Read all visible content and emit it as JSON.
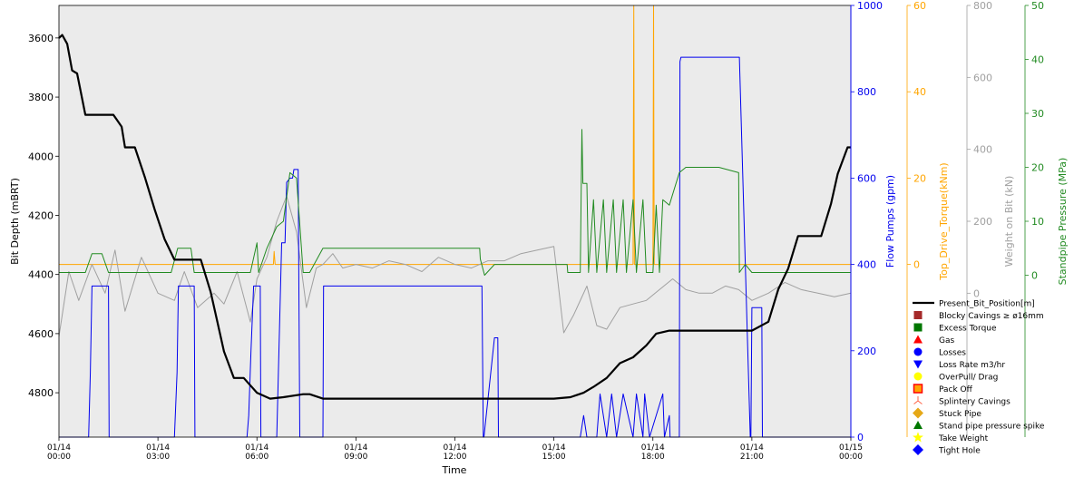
{
  "chart_data": {
    "type": "line",
    "xlabel": "Time",
    "x_ticks": [
      "01/14\n00:00",
      "01/14\n03:00",
      "01/14\n06:00",
      "01/14\n09:00",
      "01/14\n12:00",
      "01/14\n15:00",
      "01/14\n18:00",
      "01/14\n21:00",
      "01/15\n00:00"
    ],
    "axes": {
      "depth": {
        "label": "Bit Depth (mBRT)",
        "color": "#000000",
        "range": [
          3490,
          4950
        ],
        "inverted": true,
        "ticks": [
          3600,
          3800,
          4000,
          4200,
          4400,
          4600,
          4800
        ]
      },
      "flow": {
        "label": "Flow Pumps (gpm)",
        "color": "#0000ee",
        "range": [
          0,
          1000
        ],
        "ticks": [
          0,
          200,
          400,
          600,
          800,
          1000
        ]
      },
      "torque": {
        "label": "Top_Drive_Torque(kNm)",
        "color": "#ffa500",
        "range": [
          -40,
          60
        ],
        "ticks": [
          0,
          20,
          40,
          60
        ]
      },
      "wob": {
        "label": "Weight on Bit (kN)",
        "color": "#a0a0a0",
        "range": [
          -400,
          800
        ],
        "ticks": [
          0,
          200,
          400,
          600,
          800
        ]
      },
      "spp": {
        "label": "Standpipe Pressure (MPa)",
        "color": "#228b22",
        "range": [
          -30,
          50
        ],
        "ticks": [
          0,
          10,
          20,
          30,
          40,
          50
        ]
      }
    },
    "series": [
      {
        "name": "Present_Bit_Position[m]",
        "axis": "depth",
        "color": "#000000",
        "x": [
          0,
          0.1,
          0.25,
          0.4,
          0.55,
          0.8,
          1.3,
          1.6,
          1.65,
          1.9,
          2.0,
          2.3,
          2.6,
          2.9,
          3.2,
          3.5,
          3.8,
          4.0,
          4.3,
          4.6,
          4.8,
          5.0,
          5.3,
          5.6,
          6.0,
          6.4,
          6.8,
          7.4,
          7.6,
          8.0,
          9.0,
          10.0,
          11.0,
          12.0,
          13.0,
          14.0,
          15.0,
          15.5,
          15.9,
          16.2,
          16.6,
          17.0,
          17.4,
          17.8,
          18.1,
          18.5,
          18.8,
          19.2,
          20.0,
          20.6,
          21.0,
          21.5,
          21.8,
          22.1,
          22.4,
          22.8,
          23.1,
          23.4,
          23.6,
          23.9,
          24.0
        ],
        "y": [
          3600,
          3590,
          3620,
          3710,
          3720,
          3860,
          3860,
          3860,
          3860,
          3900,
          3970,
          3970,
          4070,
          4180,
          4280,
          4350,
          4350,
          4350,
          4350,
          4460,
          4560,
          4660,
          4750,
          4750,
          4800,
          4820,
          4815,
          4805,
          4805,
          4820,
          4820,
          4820,
          4820,
          4820,
          4820,
          4820,
          4820,
          4815,
          4800,
          4780,
          4750,
          4700,
          4680,
          4640,
          4600,
          4590,
          4590,
          4590,
          4590,
          4590,
          4590,
          4560,
          4450,
          4380,
          4270,
          4270,
          4270,
          4160,
          4060,
          3970,
          3970
        ]
      },
      {
        "name": "Flow Pumps",
        "axis": "flow",
        "color": "#0000ee",
        "x": [
          0,
          0.9,
          0.95,
          1.0,
          1.08,
          1.15,
          1.5,
          1.52,
          3.5,
          3.58,
          3.62,
          3.7,
          4.1,
          4.12,
          5.7,
          5.75,
          5.82,
          5.9,
          6.1,
          6.12,
          6.6,
          6.65,
          6.75,
          6.85,
          6.9,
          7.0,
          7.08,
          7.12,
          7.25,
          7.3,
          7.5,
          7.52,
          8.0,
          8.02,
          12.8,
          12.82,
          12.86,
          12.88,
          13.2,
          13.22,
          13.3,
          13.32,
          15.8,
          15.9,
          16.0,
          16.3,
          16.4,
          16.6,
          16.75,
          16.9,
          17.1,
          17.4,
          17.5,
          17.7,
          17.75,
          17.9,
          18.3,
          18.35,
          18.5,
          18.52,
          18.8,
          18.82,
          18.85,
          19.6,
          20.6,
          20.62,
          20.95,
          20.97,
          21.0,
          21.3,
          21.32,
          24.0
        ],
        "y": [
          0,
          0,
          150,
          350,
          350,
          350,
          350,
          0,
          0,
          150,
          350,
          350,
          350,
          0,
          0,
          50,
          200,
          350,
          350,
          0,
          0,
          150,
          450,
          450,
          590,
          600,
          600,
          620,
          620,
          0,
          0,
          0,
          0,
          350,
          350,
          350,
          0,
          0,
          230,
          230,
          230,
          0,
          0,
          50,
          0,
          0,
          100,
          0,
          100,
          0,
          100,
          0,
          100,
          0,
          100,
          0,
          100,
          0,
          50,
          0,
          0,
          870,
          880,
          880,
          880,
          880,
          0,
          0,
          300,
          300,
          0,
          0
        ]
      },
      {
        "name": "Standpipe Pressure",
        "axis": "spp",
        "color": "#228b22",
        "x": [
          0,
          0.8,
          1.0,
          1.3,
          1.5,
          1.52,
          3.4,
          3.6,
          4.0,
          4.1,
          4.12,
          5.8,
          6.0,
          6.05,
          6.3,
          6.6,
          6.8,
          7.0,
          7.2,
          7.4,
          7.6,
          8.0,
          10.0,
          12.0,
          12.75,
          12.77,
          12.9,
          13.2,
          13.3,
          15.0,
          15.4,
          15.42,
          15.8,
          15.85,
          15.88,
          16.0,
          16.05,
          16.2,
          16.3,
          16.5,
          16.6,
          16.8,
          16.9,
          17.1,
          17.2,
          17.4,
          17.5,
          17.7,
          17.8,
          18.0,
          18.1,
          18.2,
          18.3,
          18.5,
          18.8,
          19.0,
          20.0,
          20.6,
          20.62,
          20.8,
          21.0,
          21.5,
          22.0,
          23.0,
          24.0
        ],
        "y": [
          0.5,
          0.5,
          4,
          4,
          0.5,
          0.5,
          0.5,
          5,
          5,
          0.5,
          0.5,
          0.5,
          6,
          0.5,
          5,
          9,
          10,
          19,
          18,
          0.5,
          0.5,
          5,
          5,
          5,
          5,
          3,
          0,
          2,
          2,
          2,
          2,
          0.5,
          0.5,
          27,
          17,
          17,
          0.5,
          14,
          0.5,
          14,
          0.5,
          14,
          0.5,
          14,
          0.5,
          14,
          0.5,
          14,
          0.5,
          0.5,
          13,
          0.5,
          14,
          13,
          19,
          20,
          20,
          19,
          0.5,
          2,
          0.5,
          0.5,
          0.5,
          0.5,
          0.5
        ]
      },
      {
        "name": "Top_Drive_Torque",
        "axis": "torque",
        "color": "#ffa500",
        "x": [
          0,
          3.0,
          3.02,
          3.5,
          5.0,
          6.0,
          6.5,
          6.52,
          6.55,
          7.0,
          8.0,
          12.0,
          16.0,
          17.0,
          17.4,
          17.42,
          17.44,
          17.6,
          18.0,
          18.02,
          18.04,
          18.2,
          18.5,
          19.0,
          24.0
        ],
        "y": [
          0,
          0,
          0,
          0,
          0,
          0,
          0,
          3,
          0,
          0,
          0,
          0,
          0,
          0,
          0,
          60,
          0,
          0,
          0,
          60,
          0,
          0,
          0,
          0,
          0
        ]
      },
      {
        "name": "Weight on Bit",
        "axis": "wob",
        "color": "#a0a0a0",
        "x": [
          0,
          0.3,
          0.6,
          1.0,
          1.4,
          1.7,
          2.0,
          2.5,
          3.0,
          3.5,
          3.8,
          4.2,
          4.7,
          5.0,
          5.4,
          5.8,
          6.0,
          6.3,
          6.6,
          6.9,
          7.2,
          7.5,
          7.8,
          8.0,
          8.3,
          8.6,
          9.0,
          9.5,
          10.0,
          10.5,
          11.0,
          11.5,
          12.0,
          12.5,
          13.0,
          13.5,
          14.0,
          14.5,
          15.0,
          15.3,
          15.6,
          16.0,
          16.3,
          16.6,
          17.0,
          17.4,
          17.8,
          18.2,
          18.6,
          19.0,
          19.4,
          19.8,
          20.2,
          20.6,
          21.0,
          21.5,
          22.0,
          22.5,
          23.0,
          23.5,
          24.0
        ],
        "y": [
          -120,
          60,
          -20,
          80,
          0,
          120,
          -50,
          100,
          0,
          -20,
          60,
          -40,
          0,
          -30,
          60,
          -80,
          40,
          100,
          200,
          270,
          170,
          -40,
          70,
          80,
          110,
          70,
          80,
          70,
          90,
          80,
          60,
          100,
          80,
          70,
          90,
          90,
          110,
          120,
          130,
          -110,
          -60,
          20,
          -90,
          -100,
          -40,
          -30,
          -20,
          10,
          40,
          10,
          0,
          0,
          20,
          10,
          -20,
          0,
          30,
          10,
          0,
          -10,
          0
        ]
      }
    ],
    "legend": [
      {
        "label": "Present_Bit_Position[m]",
        "marker": "line",
        "color": "#000000"
      },
      {
        "label": "Blocky Cavings ≥ ø16mm",
        "marker": "square",
        "color": "#a52a2a"
      },
      {
        "label": "Excess Torque",
        "marker": "square",
        "color": "#007700"
      },
      {
        "label": "Gas",
        "marker": "triangle-up",
        "color": "#ff0000"
      },
      {
        "label": "Losses",
        "marker": "circle",
        "color": "#0000ff"
      },
      {
        "label": "Loss Rate m3/hr",
        "marker": "triangle-down",
        "color": "#0000ff"
      },
      {
        "label": "OverPull/ Drag",
        "marker": "circle",
        "color": "#ffff00"
      },
      {
        "label": "Pack Off",
        "marker": "square-outline",
        "color": "#ff8c00"
      },
      {
        "label": "Splintery Cavings",
        "marker": "tri",
        "color": "#ff6347"
      },
      {
        "label": "Stuck Pipe",
        "marker": "diamond",
        "color": "#e6a817"
      },
      {
        "label": "Stand pipe pressure spike",
        "marker": "triangle-up",
        "color": "#007700"
      },
      {
        "label": "Take Weight",
        "marker": "star",
        "color": "#ffff00"
      },
      {
        "label": "Tight Hole",
        "marker": "diamond",
        "color": "#0000ff"
      }
    ],
    "legend_location": "lower-right-outside",
    "grid": false,
    "plot_background": "#ebebeb"
  }
}
